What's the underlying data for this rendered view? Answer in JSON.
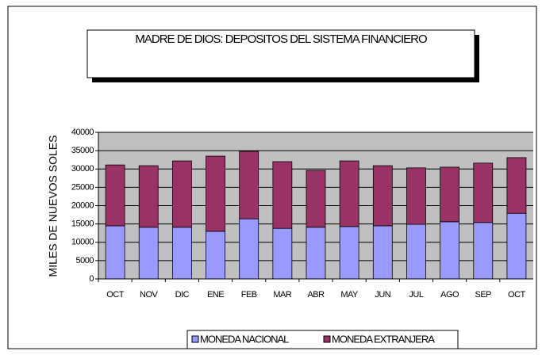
{
  "chart_data": {
    "type": "stacked_bar",
    "title": "MADRE DE DIOS: DEPOSITOS DEL SISTEMA FINANCIERO",
    "y_label": "MILES DE NUEVOS SOLES",
    "categories": [
      "OCT",
      "NOV",
      "DIC",
      "ENE",
      "FEB",
      "MAR",
      "ABR",
      "MAY",
      "JUN",
      "JUL",
      "AGO",
      "SEP",
      "OCT"
    ],
    "series": [
      {
        "name": "MONEDA NACIONAL",
        "color": "#9999ff",
        "values": [
          14500,
          14100,
          14100,
          13000,
          16400,
          13800,
          14100,
          14300,
          14500,
          14900,
          15600,
          15400,
          17900
        ]
      },
      {
        "name": "MONEDA EXTRANJERA",
        "color": "#993366",
        "values": [
          16600,
          16800,
          18100,
          20500,
          18400,
          18200,
          15500,
          17900,
          16400,
          15400,
          14900,
          16200,
          15200
        ]
      }
    ],
    "ylim": [
      0,
      40000
    ],
    "yticks": [
      0,
      5000,
      10000,
      15000,
      20000,
      25000,
      30000,
      35000,
      40000
    ],
    "grid": true
  }
}
